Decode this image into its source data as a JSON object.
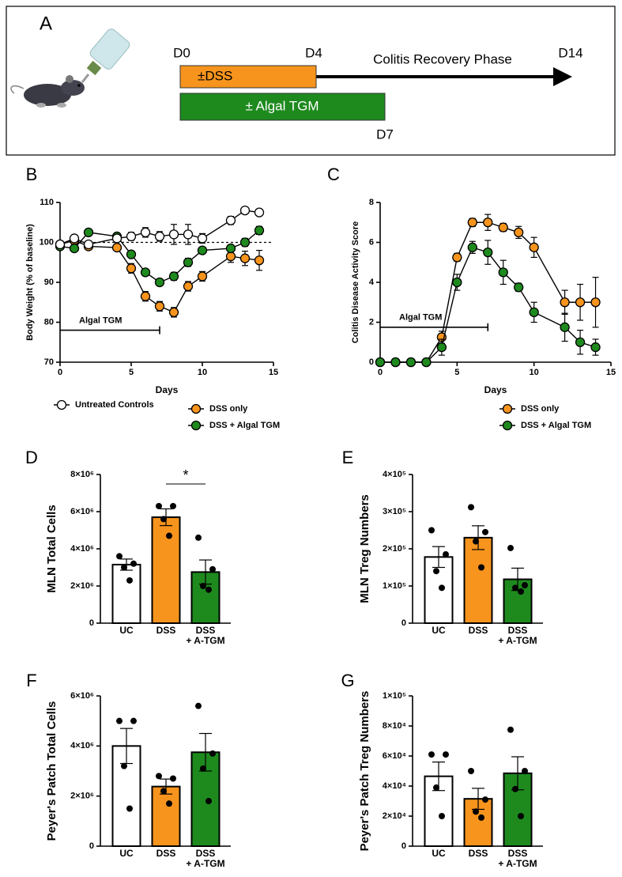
{
  "panel_a": {
    "label": "A",
    "d0": "D0",
    "d4": "D4",
    "phase": "Colitis Recovery Phase",
    "d14": "D14",
    "dss_bar": "±DSS",
    "tgm_bar": "± Algal TGM",
    "d7": "D7"
  },
  "chart_data": [
    {
      "panel": "B",
      "type": "line",
      "ylabel": "Body Weight (% of baseline)",
      "xlabel": "Days",
      "x": [
        0,
        1,
        2,
        4,
        5,
        6,
        7,
        8,
        9,
        10,
        12,
        13,
        14
      ],
      "xlim": [
        0,
        15
      ],
      "xticks": [
        0,
        5,
        10,
        15
      ],
      "ylim": [
        70,
        110
      ],
      "yticks": [
        70,
        80,
        90,
        100,
        110
      ],
      "reference_y": 100,
      "annotation": {
        "text": "Algal TGM",
        "x": [
          0,
          7
        ],
        "y": 78
      },
      "series": [
        {
          "name": "DSS only",
          "color": "#f7941d",
          "values": [
            99.5,
            100.5,
            99,
            98.7,
            93.5,
            86.5,
            84,
            82.5,
            89,
            91.5,
            96.5,
            96,
            95.5
          ],
          "errors": [
            0.5,
            0.8,
            0.6,
            0.8,
            1.2,
            1.2,
            1.2,
            1.2,
            1.2,
            1.2,
            1.5,
            1.8,
            2.5
          ]
        },
        {
          "name": "DSS + Algal TGM",
          "color": "#1e8a1e",
          "values": [
            99,
            98.5,
            102.5,
            101.5,
            97,
            92.5,
            90,
            91.5,
            95,
            98,
            98.5,
            100,
            103
          ],
          "errors": [
            0.5,
            0.6,
            0.6,
            0.8,
            0.8,
            0.8,
            0.6,
            1,
            1,
            0.8,
            0.8,
            1,
            1
          ]
        },
        {
          "name": "Untreated Controls",
          "color": "#ffffff",
          "values": [
            99.5,
            101,
            99.5,
            101,
            101.5,
            102.5,
            101.5,
            102,
            102,
            101,
            105.5,
            108,
            107.5
          ],
          "errors": [
            0.5,
            0.6,
            0.6,
            0.8,
            1,
            1.2,
            1.2,
            2.5,
            2.5,
            1.2,
            1,
            0.6,
            0.6
          ]
        }
      ]
    },
    {
      "panel": "C",
      "type": "line",
      "ylabel": "Colitis Disease Activity Score",
      "xlabel": "Days",
      "x": [
        0,
        1,
        2,
        3,
        4,
        5,
        6,
        7,
        8,
        9,
        10,
        12,
        13,
        14
      ],
      "xlim": [
        0,
        15
      ],
      "xticks": [
        0,
        5,
        10,
        15
      ],
      "ylim": [
        0,
        8
      ],
      "yticks": [
        0,
        2,
        4,
        6,
        8
      ],
      "annotation": {
        "text": "Algal TGM",
        "x": [
          0,
          7
        ],
        "y": 1.75
      },
      "series": [
        {
          "name": "DSS only",
          "color": "#f7941d",
          "values": [
            0,
            0,
            0,
            0,
            1.25,
            5.25,
            7,
            7,
            6.75,
            6.5,
            5.75,
            3,
            3,
            3
          ],
          "errors": [
            0,
            0,
            0,
            0,
            0.3,
            0.2,
            0.2,
            0.4,
            0.2,
            0.3,
            0.5,
            0.6,
            0.9,
            1.25
          ]
        },
        {
          "name": "DSS + Algal TGM",
          "color": "#1e8a1e",
          "values": [
            0,
            0,
            0,
            0,
            0.75,
            4,
            5.75,
            5.5,
            4.5,
            3.75,
            2.5,
            1.75,
            1,
            0.75
          ],
          "errors": [
            0,
            0,
            0,
            0,
            0.4,
            0.4,
            0.3,
            0.6,
            0.6,
            0.2,
            0.5,
            0.7,
            0.6,
            0.4
          ]
        }
      ]
    },
    {
      "panel": "D",
      "type": "bar",
      "ylabel": "MLN Total Cells",
      "annotation": "*",
      "categories": [
        "UC",
        "DSS",
        "DSS\n+ A-TGM"
      ],
      "colors": [
        "#ffffff",
        "#f7941d",
        "#1e8a1e"
      ],
      "values": [
        3150000,
        5700000,
        2750000
      ],
      "errors": [
        300000,
        450000,
        650000
      ],
      "points": [
        [
          3600000,
          3200000,
          3000000,
          2300000
        ],
        [
          6300000,
          6300000,
          5600000,
          4700000
        ],
        [
          4600000,
          2900000,
          2000000,
          1800000
        ]
      ],
      "ylim": [
        0,
        8000000
      ],
      "yticks": [
        0,
        {
          "value": 2000000,
          "label": "2×10⁶"
        },
        {
          "value": 4000000,
          "label": "4×10⁶"
        },
        {
          "value": 6000000,
          "label": "6×10⁶"
        },
        {
          "value": 8000000,
          "label": "8×10⁶"
        }
      ]
    },
    {
      "panel": "E",
      "type": "bar",
      "ylabel": "MLN Treg Numbers",
      "categories": [
        "UC",
        "DSS",
        "DSS\n+ A-TGM"
      ],
      "colors": [
        "#ffffff",
        "#f7941d",
        "#1e8a1e"
      ],
      "values": [
        178000,
        230000,
        118000
      ],
      "errors": [
        28000,
        32000,
        30000
      ],
      "points": [
        [
          250000,
          185000,
          140000,
          95000
        ],
        [
          312000,
          245000,
          220000,
          150000
        ],
        [
          202000,
          102000,
          95000,
          85000
        ]
      ],
      "ylim": [
        0,
        400000
      ],
      "yticks": [
        0,
        {
          "value": 100000,
          "label": "1×10⁵"
        },
        {
          "value": 200000,
          "label": "2×10⁵"
        },
        {
          "value": 300000,
          "label": "3×10⁵"
        },
        {
          "value": 400000,
          "label": "4×10⁵"
        }
      ]
    },
    {
      "panel": "F",
      "type": "bar",
      "ylabel": "Peyer's Patch Total Cells",
      "categories": [
        "UC",
        "DSS",
        "DSS\n+ A-TGM"
      ],
      "colors": [
        "#ffffff",
        "#f7941d",
        "#1e8a1e"
      ],
      "values": [
        4000000,
        2380000,
        3750000
      ],
      "errors": [
        700000,
        300000,
        750000
      ],
      "points": [
        [
          5000000,
          5000000,
          3200000,
          1500000
        ],
        [
          2800000,
          2700000,
          2200000,
          1700000
        ],
        [
          5600000,
          3700000,
          3100000,
          1800000
        ]
      ],
      "ylim": [
        0,
        6000000
      ],
      "yticks": [
        0,
        {
          "value": 2000000,
          "label": "2×10⁶"
        },
        {
          "value": 4000000,
          "label": "4×10⁶"
        },
        {
          "value": 6000000,
          "label": "6×10⁶"
        }
      ]
    },
    {
      "panel": "G",
      "type": "bar",
      "ylabel": "Peyer's Patch Treg Numbers",
      "categories": [
        "UC",
        "DSS",
        "DSS\n+ A-TGM"
      ],
      "colors": [
        "#ffffff",
        "#f7941d",
        "#1e8a1e"
      ],
      "values": [
        46500,
        31500,
        48500
      ],
      "errors": [
        9500,
        7000,
        11000
      ],
      "points": [
        [
          61000,
          61000,
          39000,
          20000
        ],
        [
          50000,
          31000,
          23000,
          19000
        ],
        [
          77500,
          50000,
          38000,
          20000
        ]
      ],
      "ylim": [
        0,
        100000
      ],
      "yticks": [
        0,
        {
          "value": 20000,
          "label": "2×10⁴"
        },
        {
          "value": 40000,
          "label": "4×10⁴"
        },
        {
          "value": 60000,
          "label": "6×10⁴"
        },
        {
          "value": 80000,
          "label": "8×10⁴"
        },
        {
          "value": 100000,
          "label": "1×10⁵"
        }
      ]
    }
  ]
}
